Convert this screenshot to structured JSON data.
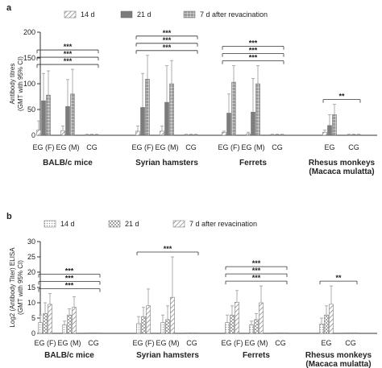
{
  "chart_data": [
    {
      "panel_label": "a",
      "type": "bar",
      "ylabel": "Antibody titres\n(GMT with 95% CI)",
      "ylim": [
        0,
        200
      ],
      "yticks": [
        "0",
        "50",
        "100",
        "150",
        "200"
      ],
      "legend": {
        "placement": "top",
        "entries": [
          "14 d",
          "21 d",
          "7 d after revacination"
        ]
      },
      "legend_patterns": [
        "diag",
        "solid",
        "grid"
      ],
      "colors": {
        "main": "#7f7f7f",
        "err": "#9a9a9a"
      },
      "series_names": [
        "14 d",
        "21 d",
        "7 d after revacination"
      ],
      "groups": [
        {
          "name": "BALB/c mice",
          "categories": [
            "EG (F)",
            "EG (M)",
            "CG"
          ],
          "values": [
            [
              10,
              67,
              78
            ],
            [
              9,
              56,
              80
            ],
            [
              1,
              1,
              1
            ]
          ],
          "err_hi": [
            [
              28,
              120,
              125
            ],
            [
              18,
              108,
              128
            ],
            [
              2,
              2,
              2
            ]
          ],
          "sig": [
            "***",
            "***",
            "***"
          ]
        },
        {
          "name": "Syrian hamsters",
          "categories": [
            "EG (F)",
            "EG (M)",
            "CG"
          ],
          "values": [
            [
              8,
              54,
              109
            ],
            [
              8,
              64,
              100
            ],
            [
              1,
              1,
              1
            ]
          ],
          "err_hi": [
            [
              18,
              120,
              155
            ],
            [
              18,
              135,
              145
            ],
            [
              2,
              2,
              2
            ]
          ],
          "sig": [
            "***",
            "***",
            "***"
          ]
        },
        {
          "name": "Ferrets",
          "categories": [
            "EG (F)",
            "EG (M)",
            "CG"
          ],
          "values": [
            [
              6,
              43,
              103
            ],
            [
              3,
              45,
              100
            ],
            [
              1,
              1,
              1
            ]
          ],
          "err_hi": [
            [
              8,
              80,
              135
            ],
            [
              6,
              110,
              135
            ],
            [
              2,
              2,
              2
            ]
          ],
          "sig": [
            "***",
            "***",
            "***"
          ]
        },
        {
          "name": "Rhesus monkeys\n(Macaca mulatta)",
          "categories": [
            "EG",
            "CG"
          ],
          "values": [
            [
              6,
              19,
              40
            ],
            [
              1,
              1,
              1
            ]
          ],
          "err_hi": [
            [
              10,
              40,
              60
            ],
            [
              2,
              2,
              2
            ]
          ],
          "sig": [
            "**"
          ]
        }
      ]
    },
    {
      "panel_label": "b",
      "type": "bar",
      "ylabel": "Log2 (Antibody Titer) ELISA\n(GMT with 95% CI)",
      "ylim": [
        0,
        30
      ],
      "yticks": [
        "0",
        "5",
        "10",
        "15",
        "20",
        "25",
        "30"
      ],
      "legend": {
        "placement": "top",
        "entries": [
          "14 d",
          "21 d",
          "7 d after revacination"
        ]
      },
      "legend_patterns": [
        "dots",
        "checker",
        "diag"
      ],
      "colors": {
        "main": "#b0b0b0",
        "err": "#9a9a9a"
      },
      "series_names": [
        "14 d",
        "21 d",
        "7 d after revacination"
      ],
      "groups": [
        {
          "name": "BALB/c mice",
          "categories": [
            "EG (F)",
            "EG (M)",
            "CG"
          ],
          "values": [
            [
              3.5,
              6.5,
              9.5
            ],
            [
              2.8,
              6,
              8.5
            ],
            [
              0,
              0,
              0
            ]
          ],
          "err_hi": [
            [
              6,
              10,
              13
            ],
            [
              4,
              8,
              12
            ],
            [
              0,
              0,
              0
            ]
          ],
          "sig": [
            "***",
            "***",
            "***"
          ]
        },
        {
          "name": "Syrian hamsters",
          "categories": [
            "EG (F)",
            "EG (M)",
            "CG"
          ],
          "values": [
            [
              3.2,
              5.5,
              9
            ],
            [
              3.5,
              4.5,
              11.8
            ],
            [
              0,
              0,
              0
            ]
          ],
          "err_hi": [
            [
              5.5,
              8.5,
              14.5
            ],
            [
              6,
              9,
              25
            ],
            [
              0,
              0,
              0
            ]
          ],
          "sig": [
            "***"
          ]
        },
        {
          "name": "Ferrets",
          "categories": [
            "EG (F)",
            "EG (M)",
            "CG"
          ],
          "values": [
            [
              3.5,
              6,
              10.2
            ],
            [
              2.8,
              4.5,
              10
            ],
            [
              0,
              0,
              0
            ]
          ],
          "err_hi": [
            [
              6,
              9,
              14
            ],
            [
              4,
              6.5,
              15.5
            ],
            [
              0,
              0,
              0
            ]
          ],
          "sig": [
            "***",
            "***",
            "***"
          ]
        },
        {
          "name": "Rhesus monkeys\n(Macaca mulatta)",
          "categories": [
            "EG",
            "CG"
          ],
          "values": [
            [
              3,
              6,
              9.5
            ],
            [
              0,
              0,
              0
            ]
          ],
          "err_hi": [
            [
              5,
              9,
              15.5
            ],
            [
              0,
              0,
              0
            ]
          ],
          "sig": [
            "**"
          ]
        }
      ]
    }
  ]
}
